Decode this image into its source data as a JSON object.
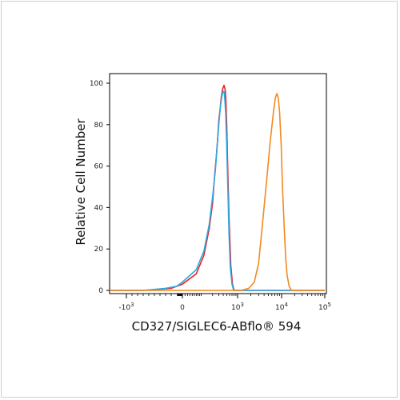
{
  "chart_data": {
    "type": "line",
    "title": "",
    "xlabel": "CD327/SIGLEC6-ABflo® 594",
    "ylabel": "Relative Cell Number",
    "x_scale": "logicle",
    "xlim": [
      -2000,
      100000
    ],
    "ylim": [
      0,
      100
    ],
    "y_ticks": [
      0,
      20,
      40,
      60,
      80,
      100
    ],
    "y_tick_labels": [
      "0",
      "20",
      "40",
      "60",
      "80",
      "100"
    ],
    "x_ticks": [
      -1000,
      0,
      1000,
      10000,
      100000
    ],
    "x_tick_labels": [
      {
        "base": "-10",
        "exp": "3"
      },
      {
        "base": "0",
        "exp": ""
      },
      {
        "base": "10",
        "exp": "3"
      },
      {
        "base": "10",
        "exp": "4"
      },
      {
        "base": "10",
        "exp": "5"
      }
    ],
    "grid": false,
    "legend": "none",
    "series": [
      {
        "color": "#e8232a",
        "points": [
          [
            -2000,
            0
          ],
          [
            -700,
            0
          ],
          [
            -200,
            1
          ],
          [
            0,
            3
          ],
          [
            60,
            8
          ],
          [
            110,
            17
          ],
          [
            160,
            30
          ],
          [
            200,
            42
          ],
          [
            230,
            56
          ],
          [
            260,
            66
          ],
          [
            280,
            74
          ],
          [
            300,
            82
          ],
          [
            330,
            88
          ],
          [
            350,
            93
          ],
          [
            380,
            97
          ],
          [
            420,
            99
          ],
          [
            450,
            97
          ],
          [
            470,
            93
          ],
          [
            500,
            80
          ],
          [
            530,
            60
          ],
          [
            580,
            35
          ],
          [
            650,
            12
          ],
          [
            720,
            3
          ],
          [
            800,
            0
          ],
          [
            100000,
            0
          ]
        ]
      },
      {
        "color": "#2ba8df",
        "points": [
          [
            -2000,
            0
          ],
          [
            -700,
            0
          ],
          [
            -300,
            1
          ],
          [
            -100,
            2
          ],
          [
            0,
            4
          ],
          [
            60,
            10
          ],
          [
            110,
            19
          ],
          [
            160,
            32
          ],
          [
            200,
            45
          ],
          [
            240,
            58
          ],
          [
            270,
            70
          ],
          [
            300,
            80
          ],
          [
            330,
            88
          ],
          [
            360,
            93
          ],
          [
            390,
            96
          ],
          [
            420,
            96
          ],
          [
            440,
            93
          ],
          [
            470,
            85
          ],
          [
            500,
            70
          ],
          [
            540,
            48
          ],
          [
            580,
            27
          ],
          [
            630,
            11
          ],
          [
            700,
            3
          ],
          [
            780,
            0
          ],
          [
            100000,
            0
          ]
        ]
      },
      {
        "color": "#f28a1e",
        "points": [
          [
            -2000,
            0
          ],
          [
            1200,
            0
          ],
          [
            1800,
            1
          ],
          [
            2400,
            4
          ],
          [
            3000,
            13
          ],
          [
            3600,
            30
          ],
          [
            4200,
            45
          ],
          [
            4800,
            58
          ],
          [
            5400,
            70
          ],
          [
            6000,
            79
          ],
          [
            6600,
            87
          ],
          [
            7200,
            93
          ],
          [
            7800,
            95
          ],
          [
            8400,
            93
          ],
          [
            9000,
            86
          ],
          [
            9800,
            70
          ],
          [
            10500,
            50
          ],
          [
            11500,
            30
          ],
          [
            12500,
            15
          ],
          [
            13500,
            7
          ],
          [
            15000,
            2
          ],
          [
            17000,
            0
          ],
          [
            100000,
            0
          ]
        ]
      }
    ]
  }
}
